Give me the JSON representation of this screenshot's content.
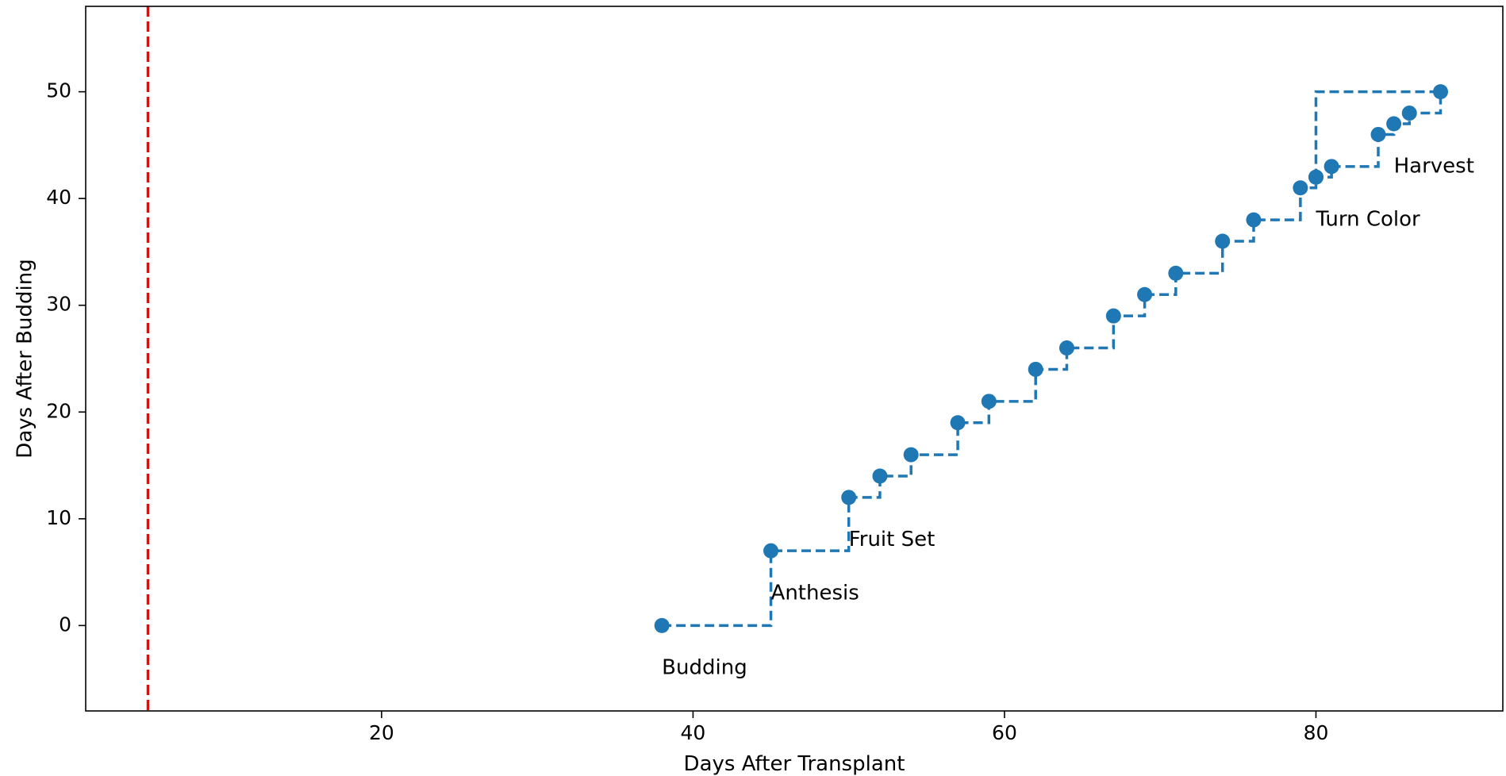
{
  "chart_data": {
    "type": "line",
    "title": "",
    "xlabel": "Days After Transplant",
    "ylabel": "Days After Budding",
    "xlim": [
      1,
      92
    ],
    "ylim": [
      -8,
      58
    ],
    "xticks": [
      20,
      40,
      60,
      80
    ],
    "yticks": [
      0,
      10,
      20,
      30,
      40,
      50
    ],
    "series": [
      {
        "style": "dashed step (post) with circle markers",
        "color": "#1f77b4",
        "x": [
          38,
          45,
          50,
          52,
          54,
          57,
          59,
          62,
          64,
          67,
          69,
          71,
          74,
          76,
          79,
          80,
          81,
          84,
          85,
          86,
          88,
          80
        ],
        "y": [
          0,
          7,
          12,
          14,
          16,
          19,
          21,
          24,
          26,
          29,
          31,
          33,
          36,
          38,
          41,
          42,
          43,
          46,
          47,
          48,
          50,
          42
        ]
      }
    ],
    "reference_lines": [
      {
        "orientation": "vertical",
        "x": 5,
        "color": "#ff0000",
        "style": "dashed"
      }
    ],
    "annotations": [
      {
        "text": "Budding",
        "x": 38,
        "y": -4
      },
      {
        "text": "Anthesis",
        "x": 45,
        "y": 3
      },
      {
        "text": "Fruit Set",
        "x": 50,
        "y": 8
      },
      {
        "text": "Turn Color",
        "x": 80,
        "y": 38
      },
      {
        "text": "Harvest",
        "x": 85,
        "y": 43
      }
    ],
    "grid": false,
    "legend": "none"
  }
}
